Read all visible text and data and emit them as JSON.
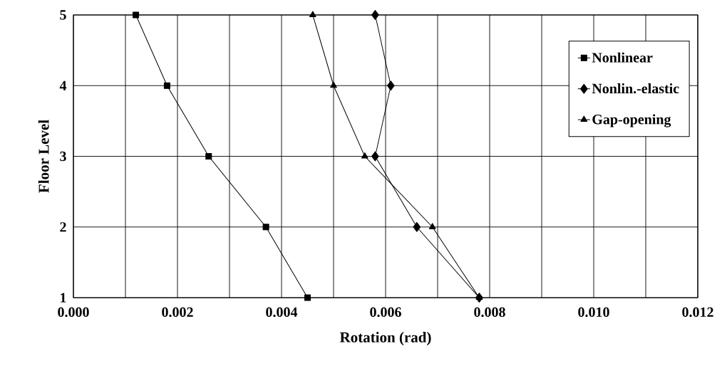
{
  "chart_data": {
    "type": "line",
    "xlabel": "Rotation (rad)",
    "ylabel": "Floor Level",
    "xlim": [
      0,
      0.012
    ],
    "xticks": [
      {
        "value": 0,
        "label": "0.000"
      },
      {
        "value": 0.001,
        "label": null
      },
      {
        "value": 0.002,
        "label": "0.002"
      },
      {
        "value": 0.003,
        "label": null
      },
      {
        "value": 0.004,
        "label": "0.004"
      },
      {
        "value": 0.005,
        "label": null
      },
      {
        "value": 0.006,
        "label": "0.006"
      },
      {
        "value": 0.007,
        "label": null
      },
      {
        "value": 0.008,
        "label": "0.008"
      },
      {
        "value": 0.009,
        "label": null
      },
      {
        "value": 0.01,
        "label": "0.010"
      },
      {
        "value": 0.011,
        "label": null
      },
      {
        "value": 0.012,
        "label": "0.012"
      }
    ],
    "ylim": [
      1,
      5
    ],
    "yticks": [
      1,
      2,
      3,
      4,
      5
    ],
    "grid": true,
    "legend": "top right",
    "line_style": "solid",
    "series": [
      {
        "name": "Nonlinear",
        "color": "#000000",
        "marker": "square",
        "x": [
          0.0045,
          0.0037,
          0.0026,
          0.0018,
          0.0012
        ],
        "values": [
          1,
          2,
          3,
          4,
          5
        ]
      },
      {
        "name": "Nonlin.-elastic",
        "color": "#000000",
        "marker": "diamond",
        "x": [
          0.0078,
          0.0066,
          0.0058,
          0.0061,
          0.0058
        ],
        "values": [
          1,
          2,
          3,
          4,
          5
        ]
      },
      {
        "name": "Gap-opening",
        "color": "#000000",
        "marker": "triangle",
        "x": [
          0.0078,
          0.0069,
          0.0056,
          0.005,
          0.0046
        ],
        "values": [
          1,
          2,
          3,
          4,
          5
        ]
      }
    ]
  }
}
